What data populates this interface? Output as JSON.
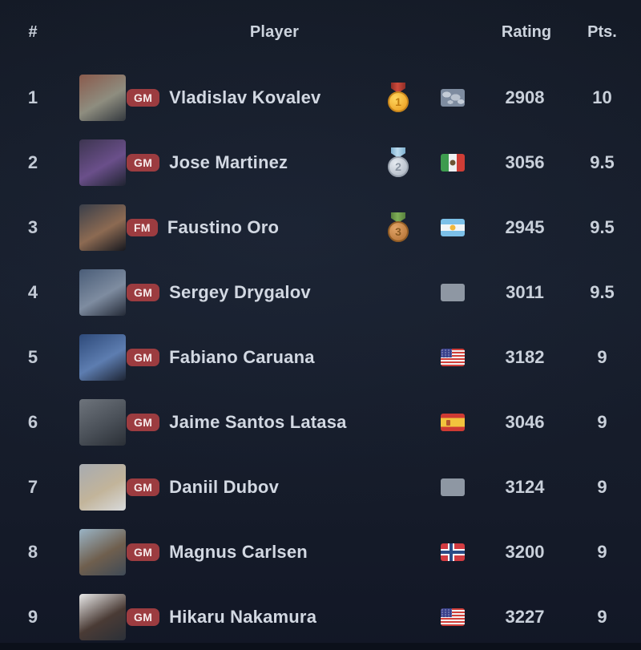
{
  "table": {
    "headers": {
      "rank": "#",
      "player": "Player",
      "rating": "Rating",
      "points": "Pts."
    },
    "players": [
      {
        "rank": "1",
        "title": "GM",
        "name": "Vladislav Kovalev",
        "medal": "gold",
        "medal_number": "1",
        "flag": "world",
        "rating": "2908",
        "points": "10",
        "avatar_colors": [
          "#8a5a4c",
          "#8e8d7f",
          "#33383e"
        ]
      },
      {
        "rank": "2",
        "title": "GM",
        "name": "Jose Martinez",
        "medal": "silver",
        "medal_number": "2",
        "flag": "mexico",
        "rating": "3056",
        "points": "9.5",
        "avatar_colors": [
          "#3d3550",
          "#6a4f8a",
          "#1f2330"
        ]
      },
      {
        "rank": "3",
        "title": "FM",
        "name": "Faustino Oro",
        "medal": "bronze",
        "medal_number": "3",
        "flag": "argentina",
        "rating": "2945",
        "points": "9.5",
        "avatar_colors": [
          "#3a3f4a",
          "#8c6a52",
          "#16181f"
        ]
      },
      {
        "rank": "4",
        "title": "GM",
        "name": "Sergey Drygalov",
        "medal": null,
        "medal_number": "",
        "flag": "none",
        "rating": "3011",
        "points": "9.5",
        "avatar_colors": [
          "#4a5d78",
          "#7e8ca0",
          "#232936"
        ]
      },
      {
        "rank": "5",
        "title": "GM",
        "name": "Fabiano Caruana",
        "medal": null,
        "medal_number": "",
        "flag": "usa",
        "rating": "3182",
        "points": "9",
        "avatar_colors": [
          "#2e4a7a",
          "#5d7db0",
          "#1d2433"
        ]
      },
      {
        "rank": "6",
        "title": "GM",
        "name": "Jaime Santos Latasa",
        "medal": null,
        "medal_number": "",
        "flag": "spain",
        "rating": "3046",
        "points": "9",
        "avatar_colors": [
          "#6e747c",
          "#4a5058",
          "#2a2f36"
        ]
      },
      {
        "rank": "7",
        "title": "GM",
        "name": "Daniil Dubov",
        "medal": null,
        "medal_number": "",
        "flag": "none",
        "rating": "3124",
        "points": "9",
        "avatar_colors": [
          "#a7abb1",
          "#c2b49a",
          "#d8dadc"
        ]
      },
      {
        "rank": "8",
        "title": "GM",
        "name": "Magnus Carlsen",
        "medal": null,
        "medal_number": "",
        "flag": "norway",
        "rating": "3200",
        "points": "9",
        "avatar_colors": [
          "#9ab4c6",
          "#6f5f4e",
          "#3f4a56"
        ]
      },
      {
        "rank": "9",
        "title": "GM",
        "name": "Hikaru Nakamura",
        "medal": null,
        "medal_number": "",
        "flag": "usa",
        "rating": "3227",
        "points": "9",
        "avatar_colors": [
          "#e9e9e9",
          "#4a3b35",
          "#2b3038"
        ]
      }
    ]
  },
  "colors": {
    "background": "#161c2a",
    "title_badge_bg": "#9c3c40",
    "title_badge_text": "#f6ecec",
    "header_text": "#ccd3dd",
    "row_text": "#c9d0da",
    "player_name_text": "#d2d8e2"
  }
}
